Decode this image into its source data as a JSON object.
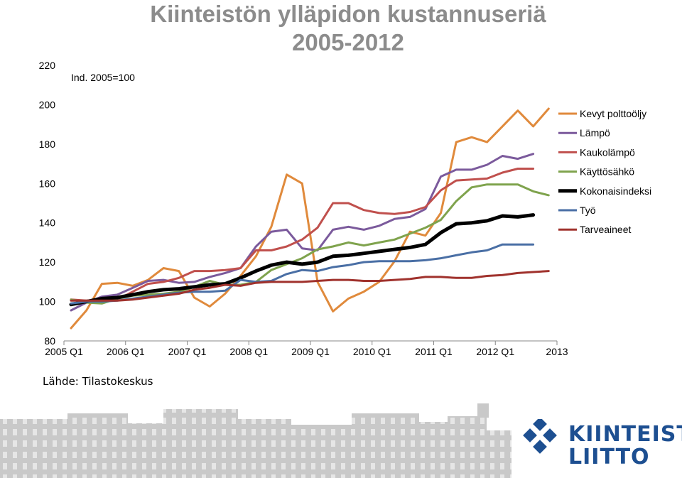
{
  "title_line1": "Kiinteistön ylläpidon kustannuseriä",
  "title_line2": "2005-2012",
  "annotation": "Ind. 2005=100",
  "source": "Lähde: Tilastokeskus",
  "logo_line1": "KIINTEISTÖ",
  "logo_line2": "LIITTO",
  "chart_data": {
    "type": "line",
    "x_ticks": [
      "2005 Q1",
      "2006 Q1",
      "2007 Q1",
      "2008 Q1",
      "2009 Q1",
      "2010 Q1",
      "2011 Q1",
      "2012 Q1",
      "2013"
    ],
    "y_ticks": [
      80,
      100,
      120,
      140,
      160,
      180,
      200,
      220
    ],
    "ylim": [
      80,
      220
    ],
    "grid": false,
    "legend_position": "right",
    "series": [
      {
        "name": "Kevyt polttoöljy",
        "color": "#e08a3c",
        "width": 3,
        "values": [
          86.5,
          95.5,
          109,
          109.5,
          108,
          111,
          117,
          115.5,
          102,
          97.5,
          104,
          113,
          123,
          138,
          164.5,
          160,
          110,
          95,
          101.5,
          105,
          110,
          120.5,
          135.5,
          133.5,
          145,
          181,
          183.5,
          181,
          189,
          197,
          189,
          198
        ]
      },
      {
        "name": "Lämpö",
        "color": "#7b5a9c",
        "width": 3,
        "values": [
          95.5,
          99.5,
          102.5,
          103.5,
          107,
          110.5,
          111,
          109.5,
          110,
          112.5,
          114.5,
          117,
          128,
          135.5,
          136.5,
          127,
          126,
          136.5,
          138,
          136.5,
          138.5,
          142,
          143,
          147,
          163.5,
          167,
          167,
          169.5,
          174,
          172.5,
          175
        ]
      },
      {
        "name": "Kaukolämpö",
        "color": "#c0504d",
        "width": 3,
        "values": [
          101,
          100.5,
          101,
          101,
          105,
          109,
          110,
          112,
          115.5,
          115.5,
          116,
          117,
          126,
          126,
          128,
          131.5,
          137.5,
          150,
          150,
          146.5,
          145,
          144.5,
          145.5,
          148,
          156.5,
          161.5,
          162,
          162.5,
          165.5,
          167.5,
          167.5
        ]
      },
      {
        "name": "Käyttösähkö",
        "color": "#7fa34d",
        "width": 3,
        "values": [
          101,
          99.5,
          99,
          101.5,
          103,
          103.5,
          104,
          105,
          107.5,
          110.5,
          108.5,
          108.5,
          110,
          116,
          119,
          122,
          126.5,
          128,
          130,
          128.5,
          130,
          131.5,
          134.5,
          137.5,
          141.5,
          151,
          158,
          159.5,
          159.5,
          159.5,
          156,
          154
        ]
      },
      {
        "name": "Kokonaisindeksi",
        "color": "#000000",
        "width": 5,
        "values": [
          98.5,
          100,
          101.5,
          102,
          103.5,
          105,
          106,
          106.5,
          107.5,
          108.5,
          109,
          112,
          115.5,
          118.5,
          120,
          119,
          120,
          123,
          123.5,
          124.5,
          125.5,
          126.5,
          127.5,
          129,
          135,
          139.5,
          140,
          141,
          143.5,
          143,
          144
        ]
      },
      {
        "name": "Työ",
        "color": "#4a6fa5",
        "width": 3,
        "values": [
          99,
          100,
          100,
          100.5,
          101.5,
          102.5,
          103.5,
          104.5,
          105,
          105,
          105.5,
          111,
          110,
          110.5,
          114,
          116,
          115.5,
          117.5,
          118.5,
          120,
          120.5,
          120.5,
          120.5,
          121,
          122,
          123.5,
          125,
          126,
          129,
          129,
          129
        ]
      },
      {
        "name": "Tarveaineet",
        "color": "#a0322d",
        "width": 3,
        "values": [
          100.5,
          100.5,
          100.5,
          100.5,
          101,
          102,
          103,
          104,
          106,
          107,
          108.5,
          108,
          109.5,
          110,
          110,
          110,
          110.5,
          111,
          111,
          110.5,
          110.5,
          111,
          111.5,
          112.5,
          112.5,
          112,
          112,
          113,
          113.5,
          114.5,
          115,
          115.5
        ]
      }
    ]
  }
}
